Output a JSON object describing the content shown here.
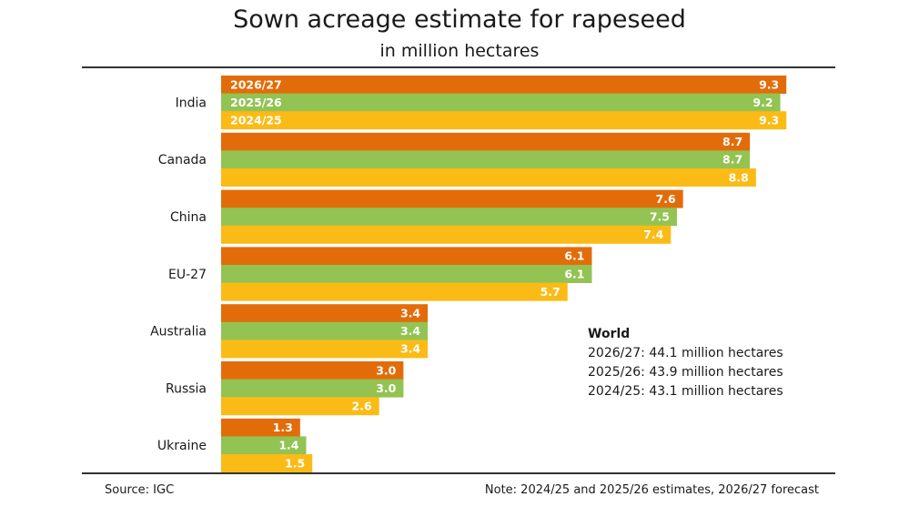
{
  "chart_data": {
    "type": "bar",
    "orientation": "horizontal",
    "title": "Sown acreage estimate for rapeseed",
    "subtitle": "in million hectares",
    "categories": [
      "India",
      "Canada",
      "China",
      "EU-27",
      "Australia",
      "Russia",
      "Ukraine"
    ],
    "series": [
      {
        "name": "2026/27",
        "color": "#E36C0A",
        "values": [
          9.3,
          8.7,
          7.6,
          6.1,
          3.4,
          3.0,
          1.3
        ],
        "labels": [
          "9.3",
          "8.7",
          "7.6",
          "6.1",
          "3.4",
          "3.0",
          "1.3"
        ]
      },
      {
        "name": "2025/26",
        "color": "#92C353",
        "values": [
          9.2,
          8.7,
          7.5,
          6.1,
          3.4,
          3.0,
          1.4
        ],
        "labels": [
          "9.2",
          "8.7",
          "7.5",
          "6.1",
          "3.4",
          "3.0",
          "1.4"
        ]
      },
      {
        "name": "2024/25",
        "color": "#FBBB16",
        "values": [
          9.3,
          8.8,
          7.4,
          5.7,
          3.4,
          2.6,
          1.5
        ],
        "labels": [
          "9.3",
          "8.8",
          "7.4",
          "5.7",
          "3.4",
          "2.6",
          "1.5"
        ]
      }
    ],
    "xlim": [
      0,
      10
    ],
    "grid": false,
    "legend": "inside-first-group"
  },
  "world": {
    "title": "World",
    "lines": [
      "2026/27: 44.1 million hectares",
      "2025/26: 43.9 million hectares",
      "2024/25: 43.1 million hectares"
    ]
  },
  "footer": {
    "source": "Source: IGC",
    "note": "Note: 2024/25 and 2025/26 estimates, 2026/27 forecast"
  }
}
